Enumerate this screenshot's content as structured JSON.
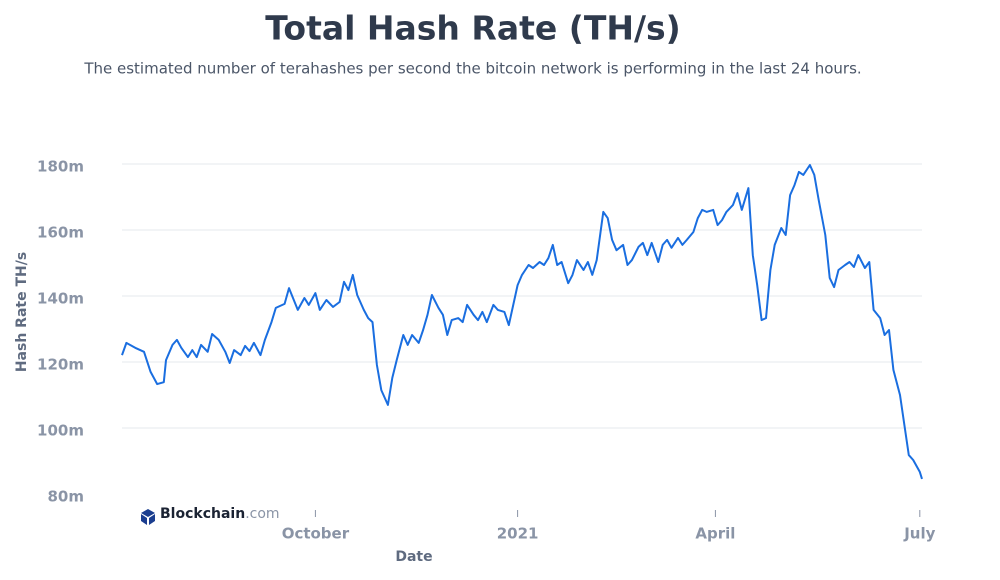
{
  "chart_data": {
    "type": "line",
    "title": "Total Hash Rate (TH/s)",
    "subtitle": "The estimated number of terahashes per second the bitcoin network is performing in the last 24 hours.",
    "x_label": "Date",
    "y_label": "Hash Rate TH/s",
    "watermark": [
      "Blockchain",
      ".com"
    ],
    "color": "#1a6ee0",
    "grid": true,
    "xlim": [
      0,
      364
    ],
    "xticks": [
      {
        "value": 88,
        "label": "October"
      },
      {
        "value": 180,
        "label": "2021"
      },
      {
        "value": 270,
        "label": "April"
      },
      {
        "value": 363,
        "label": "July"
      }
    ],
    "ylim": [
      80,
      190
    ],
    "yticks": [
      {
        "value": 80,
        "label": "80m"
      },
      {
        "value": 100,
        "label": "100m"
      },
      {
        "value": 120,
        "label": "120m"
      },
      {
        "value": 140,
        "label": "140m"
      },
      {
        "value": 160,
        "label": "160m"
      },
      {
        "value": 180,
        "label": "180m"
      }
    ],
    "x": [
      0,
      2,
      6,
      10,
      13,
      16,
      19,
      20,
      23,
      25,
      27,
      30,
      32,
      34,
      36,
      39,
      41,
      44,
      47,
      49,
      51,
      54,
      56,
      58,
      60,
      63,
      65,
      68,
      70,
      74,
      76,
      78,
      80,
      83,
      85,
      88,
      90,
      93,
      96,
      99,
      101,
      103,
      105,
      107,
      110,
      112,
      114,
      116,
      118,
      121,
      123,
      125,
      128,
      130,
      132,
      135,
      137,
      139,
      141,
      144,
      146,
      148,
      150,
      153,
      155,
      157,
      160,
      162,
      164,
      166,
      169,
      171,
      174,
      176,
      180,
      182,
      185,
      187,
      190,
      192,
      194,
      196,
      198,
      200,
      203,
      205,
      207,
      210,
      212,
      214,
      216,
      219,
      221,
      223,
      225,
      228,
      230,
      232,
      235,
      237,
      239,
      241,
      244,
      246,
      248,
      250,
      253,
      255,
      257,
      260,
      262,
      264,
      266,
      269,
      271,
      273,
      275,
      278,
      280,
      282,
      285,
      287,
      289,
      291,
      293,
      295,
      297,
      300,
      302,
      304,
      306,
      308,
      310,
      313,
      315,
      317,
      320,
      322,
      324,
      326,
      329,
      331,
      333,
      335,
      338,
      340,
      342,
      345,
      347,
      349,
      351,
      354,
      356,
      358,
      360,
      363,
      364
    ],
    "values": [
      123.0,
      126.7,
      125.2,
      124.0,
      117.9,
      114.2,
      114.8,
      121.5,
      126.1,
      127.6,
      125.2,
      122.4,
      124.5,
      122.4,
      126.1,
      124.0,
      129.4,
      127.6,
      124.0,
      120.6,
      124.5,
      123.0,
      125.8,
      124.2,
      126.7,
      123.0,
      127.6,
      133.0,
      137.3,
      138.5,
      143.3,
      140.0,
      136.7,
      140.3,
      138.2,
      141.8,
      136.7,
      139.7,
      137.6,
      139.1,
      145.2,
      142.7,
      147.3,
      141.2,
      136.7,
      134.2,
      133.0,
      120.0,
      112.4,
      107.9,
      116.1,
      121.5,
      129.1,
      126.1,
      129.1,
      126.7,
      130.6,
      135.2,
      141.2,
      137.3,
      135.2,
      129.1,
      133.6,
      134.2,
      133.0,
      138.2,
      135.2,
      133.6,
      136.1,
      133.0,
      138.2,
      136.7,
      136.1,
      132.1,
      144.2,
      147.3,
      150.3,
      149.4,
      151.2,
      150.3,
      152.4,
      156.4,
      150.3,
      151.2,
      144.8,
      147.3,
      151.8,
      148.8,
      151.2,
      147.3,
      151.8,
      166.4,
      164.5,
      157.9,
      154.8,
      156.4,
      150.3,
      151.8,
      155.8,
      157.0,
      153.3,
      157.0,
      151.2,
      156.4,
      157.9,
      155.5,
      158.5,
      156.4,
      157.9,
      160.3,
      164.5,
      167.0,
      166.4,
      167.0,
      162.4,
      163.9,
      166.4,
      168.5,
      172.1,
      167.0,
      173.6,
      153.3,
      144.2,
      133.6,
      134.2,
      148.8,
      156.4,
      161.5,
      159.4,
      171.5,
      174.5,
      178.5,
      177.6,
      180.6,
      177.6,
      170.0,
      159.4,
      146.4,
      143.6,
      148.8,
      150.3,
      151.2,
      149.7,
      153.3,
      149.4,
      151.2,
      136.7,
      134.2,
      129.1,
      130.6,
      118.5,
      110.9,
      101.8,
      92.7,
      91.2,
      87.6,
      85.5
    ]
  }
}
